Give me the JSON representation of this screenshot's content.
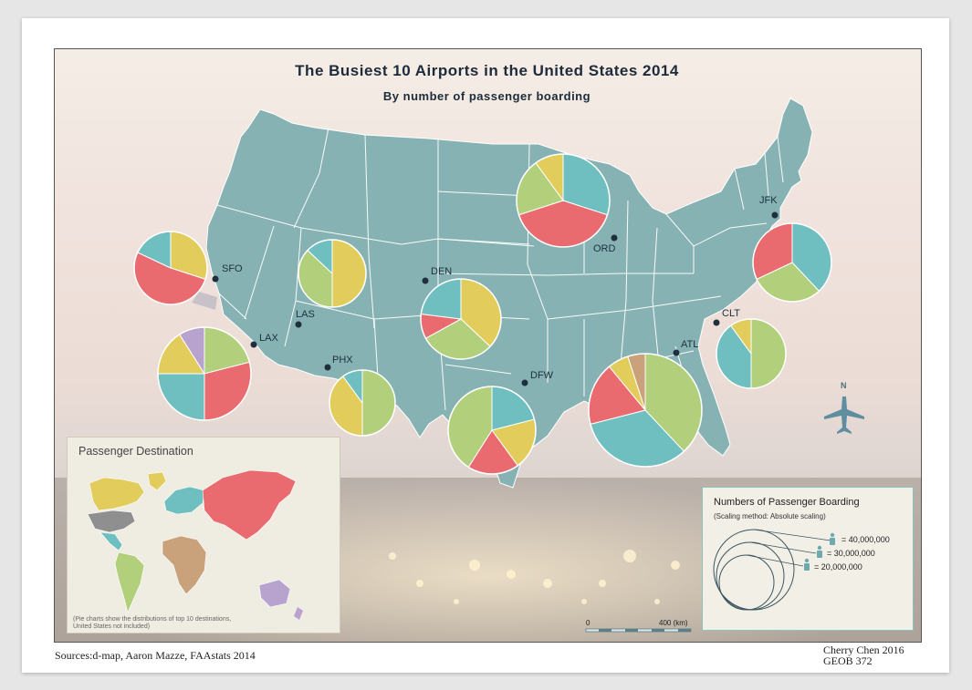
{
  "title": "The Busiest 10 Airports in the United States 2014",
  "subtitle": "By number of passenger boarding",
  "airports": [
    {
      "code": "SFO",
      "slices": [
        {
          "color": "#e2cd5c",
          "frac": 0.3
        },
        {
          "color": "#e96b70",
          "frac": 0.52
        },
        {
          "color": "#6fbfc0",
          "frac": 0.18
        }
      ]
    },
    {
      "code": "LAS",
      "slices": [
        {
          "color": "#e2cd5c",
          "frac": 0.5
        },
        {
          "color": "#b2d07c",
          "frac": 0.37
        },
        {
          "color": "#6fbfc0",
          "frac": 0.13
        }
      ]
    },
    {
      "code": "LAX",
      "slices": [
        {
          "color": "#b2d07c",
          "frac": 0.21
        },
        {
          "color": "#e96b70",
          "frac": 0.29
        },
        {
          "color": "#6fbfc0",
          "frac": 0.25
        },
        {
          "color": "#e2cd5c",
          "frac": 0.16
        },
        {
          "color": "#b7a3cd",
          "frac": 0.09
        }
      ]
    },
    {
      "code": "PHX",
      "slices": [
        {
          "color": "#b2d07c",
          "frac": 0.5
        },
        {
          "color": "#e2cd5c",
          "frac": 0.4
        },
        {
          "color": "#6fbfc0",
          "frac": 0.1
        }
      ]
    },
    {
      "code": "DEN",
      "slices": [
        {
          "color": "#e2cd5c",
          "frac": 0.37
        },
        {
          "color": "#b2d07c",
          "frac": 0.3
        },
        {
          "color": "#e96b70",
          "frac": 0.1
        },
        {
          "color": "#6fbfc0",
          "frac": 0.23
        }
      ]
    },
    {
      "code": "DFW",
      "slices": [
        {
          "color": "#6fbfc0",
          "frac": 0.21
        },
        {
          "color": "#e2cd5c",
          "frac": 0.19
        },
        {
          "color": "#e96b70",
          "frac": 0.19
        },
        {
          "color": "#b2d07c",
          "frac": 0.41
        }
      ]
    },
    {
      "code": "ORD",
      "slices": [
        {
          "color": "#6fbfc0",
          "frac": 0.3
        },
        {
          "color": "#e96b70",
          "frac": 0.4
        },
        {
          "color": "#b2d07c",
          "frac": 0.2
        },
        {
          "color": "#e2cd5c",
          "frac": 0.1
        }
      ]
    },
    {
      "code": "ATL",
      "slices": [
        {
          "color": "#b2d07c",
          "frac": 0.38
        },
        {
          "color": "#6fbfc0",
          "frac": 0.33
        },
        {
          "color": "#e96b70",
          "frac": 0.18
        },
        {
          "color": "#e2cd5c",
          "frac": 0.06
        },
        {
          "color": "#c9a27b",
          "frac": 0.05
        }
      ]
    },
    {
      "code": "CLT",
      "slices": [
        {
          "color": "#b2d07c",
          "frac": 0.5
        },
        {
          "color": "#6fbfc0",
          "frac": 0.4
        },
        {
          "color": "#e2cd5c",
          "frac": 0.1
        }
      ]
    },
    {
      "code": "JFK",
      "slices": [
        {
          "color": "#6fbfc0",
          "frac": 0.38
        },
        {
          "color": "#b2d07c",
          "frac": 0.3
        },
        {
          "color": "#e96b70",
          "frac": 0.32
        }
      ]
    }
  ],
  "inset": {
    "title": "Passenger Destination",
    "note_line1": "(Pie charts show the distributions of top 10 destinations,",
    "note_line2": "United States not included)",
    "region_colors": {
      "north_america": "#e2cd5c",
      "united_states": "#8f8f8f",
      "central_america": "#6fbfc0",
      "south_america": "#b2d07c",
      "europe": "#6fbfc0",
      "africa": "#c9a27b",
      "asia": "#e96b70",
      "oceania": "#b7a3cd"
    }
  },
  "legend": {
    "title": "Numbers of Passenger Boarding",
    "subtitle": "(Scaling method: Absolute scaling)",
    "values": [
      "= 40,000,000",
      "= 30,000,000",
      "= 20,000,000"
    ]
  },
  "scale": {
    "start": "0",
    "end": "400 (km)"
  },
  "north": "N",
  "sources": "Sources:d-map,  Aaron  Mazze,  FAAstats  2014",
  "credit_line1": "Cherry  Chen  2016",
  "credit_line2": "GEOB  372",
  "colors": {
    "land": "#86b2b3",
    "state_border": "#ffffff",
    "dot": "#1f2f3d",
    "title": "#1d2b3a"
  }
}
